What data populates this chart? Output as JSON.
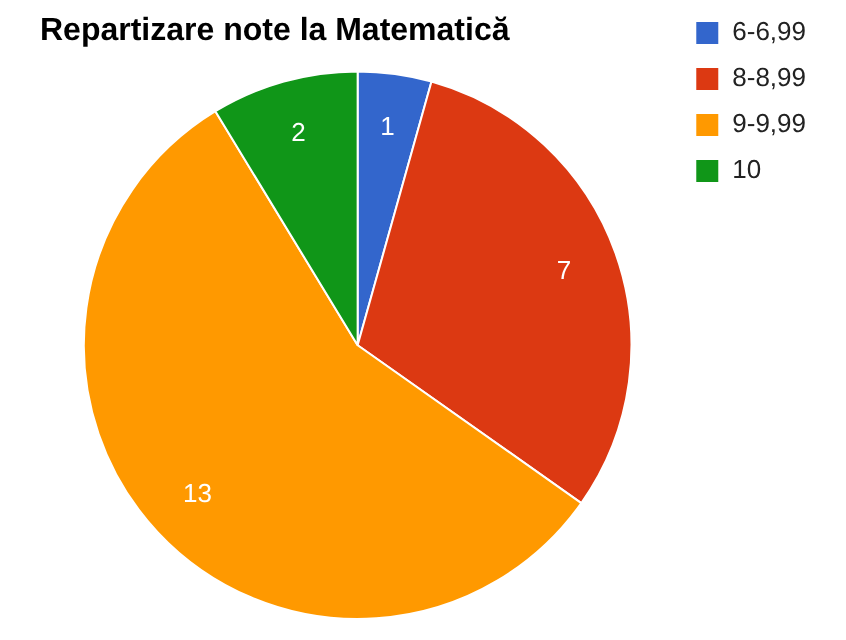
{
  "chart_data": {
    "type": "pie",
    "title": "Repartizare note la Matematică",
    "categories": [
      "6-6,99",
      "8-8,99",
      "9-9,99",
      "10"
    ],
    "values": [
      1,
      7,
      13,
      2
    ],
    "colors": [
      "#3366cc",
      "#dc3912",
      "#ff9900",
      "#109618"
    ],
    "data_labels": true,
    "legend": "right"
  }
}
